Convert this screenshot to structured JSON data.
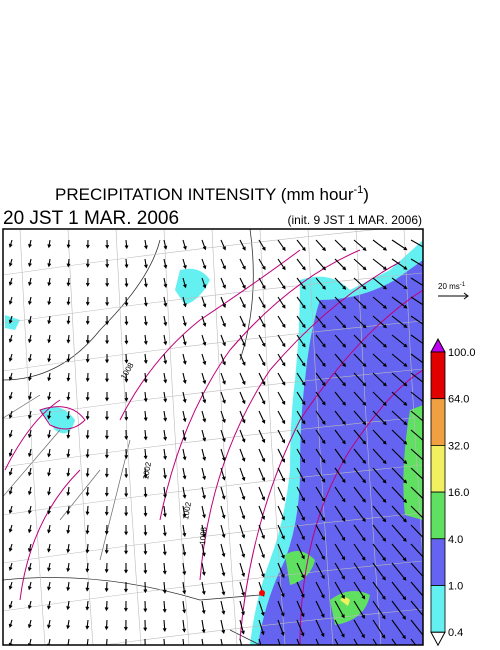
{
  "header": {
    "title": {
      "text": "PRECIPITATION INTENSITY (mm hour",
      "superscript": "-1",
      "close": ")"
    },
    "valid_time": "20 JST 1 MAR. 2006",
    "init_time": "(init. 9 JST 1 MAR. 2006)"
  },
  "reference_vector": {
    "text": "20 ms",
    "superscript": "-1"
  },
  "legend": {
    "labels": [
      "100.0",
      "64.0",
      "32.0",
      "16.0",
      "4.0",
      "1.0",
      "0.4"
    ],
    "colors": [
      "#e00000",
      "#f0a040",
      "#f0f060",
      "#60e060",
      "#6464f0",
      "#64f0f0"
    ],
    "over_color": "#c000f0",
    "under_color": "#ffffff"
  },
  "contour_labels": [
    "1008",
    "1002",
    "1002",
    "1008"
  ]
}
